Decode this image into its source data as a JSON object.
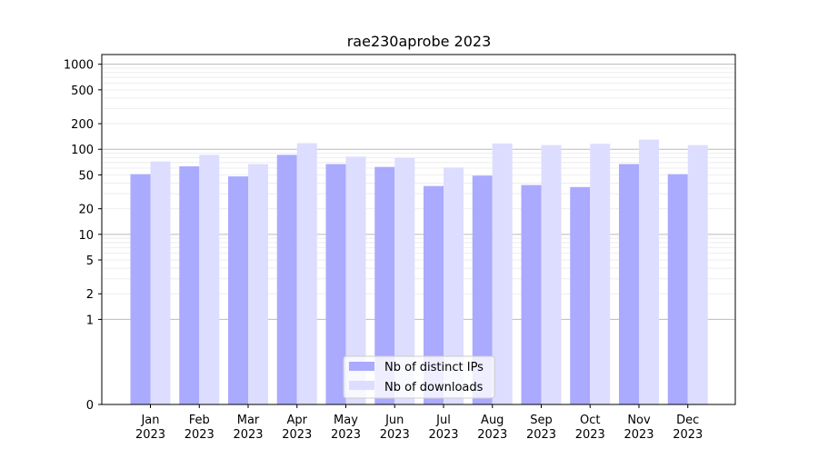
{
  "chart_data": {
    "type": "bar",
    "title": "rae230aprobe 2023",
    "xlabel": "",
    "ylabel": "",
    "y_scale": "symlog",
    "ylim": [
      0,
      1300
    ],
    "y_ticks": [
      0,
      1,
      2,
      5,
      10,
      20,
      50,
      100,
      200,
      500,
      1000
    ],
    "y_tick_labels": [
      "0",
      "1",
      "2",
      "5",
      "10",
      "20",
      "50",
      "100",
      "200",
      "500",
      "1000"
    ],
    "categories": [
      "Jan 2023",
      "Feb 2023",
      "Mar 2023",
      "Apr 2023",
      "May 2023",
      "Jun 2023",
      "Jul 2023",
      "Aug 2023",
      "Sep 2023",
      "Oct 2023",
      "Nov 2023",
      "Dec 2023"
    ],
    "category_lines": [
      [
        "Jan",
        "2023"
      ],
      [
        "Feb",
        "2023"
      ],
      [
        "Mar",
        "2023"
      ],
      [
        "Apr",
        "2023"
      ],
      [
        "May",
        "2023"
      ],
      [
        "Jun",
        "2023"
      ],
      [
        "Jul",
        "2023"
      ],
      [
        "Aug",
        "2023"
      ],
      [
        "Sep",
        "2023"
      ],
      [
        "Oct",
        "2023"
      ],
      [
        "Nov",
        "2023"
      ],
      [
        "Dec",
        "2023"
      ]
    ],
    "series": [
      {
        "name": "Nb of distinct IPs",
        "color": "#aaaaff",
        "values": [
          51,
          63,
          48,
          86,
          67,
          62,
          37,
          49,
          38,
          36,
          67,
          51
        ]
      },
      {
        "name": "Nb of downloads",
        "color": "#ddddff",
        "values": [
          72,
          86,
          67,
          118,
          82,
          79,
          61,
          117,
          112,
          116,
          130,
          112
        ]
      }
    ],
    "legend_position": "lower-center",
    "grid": true
  }
}
